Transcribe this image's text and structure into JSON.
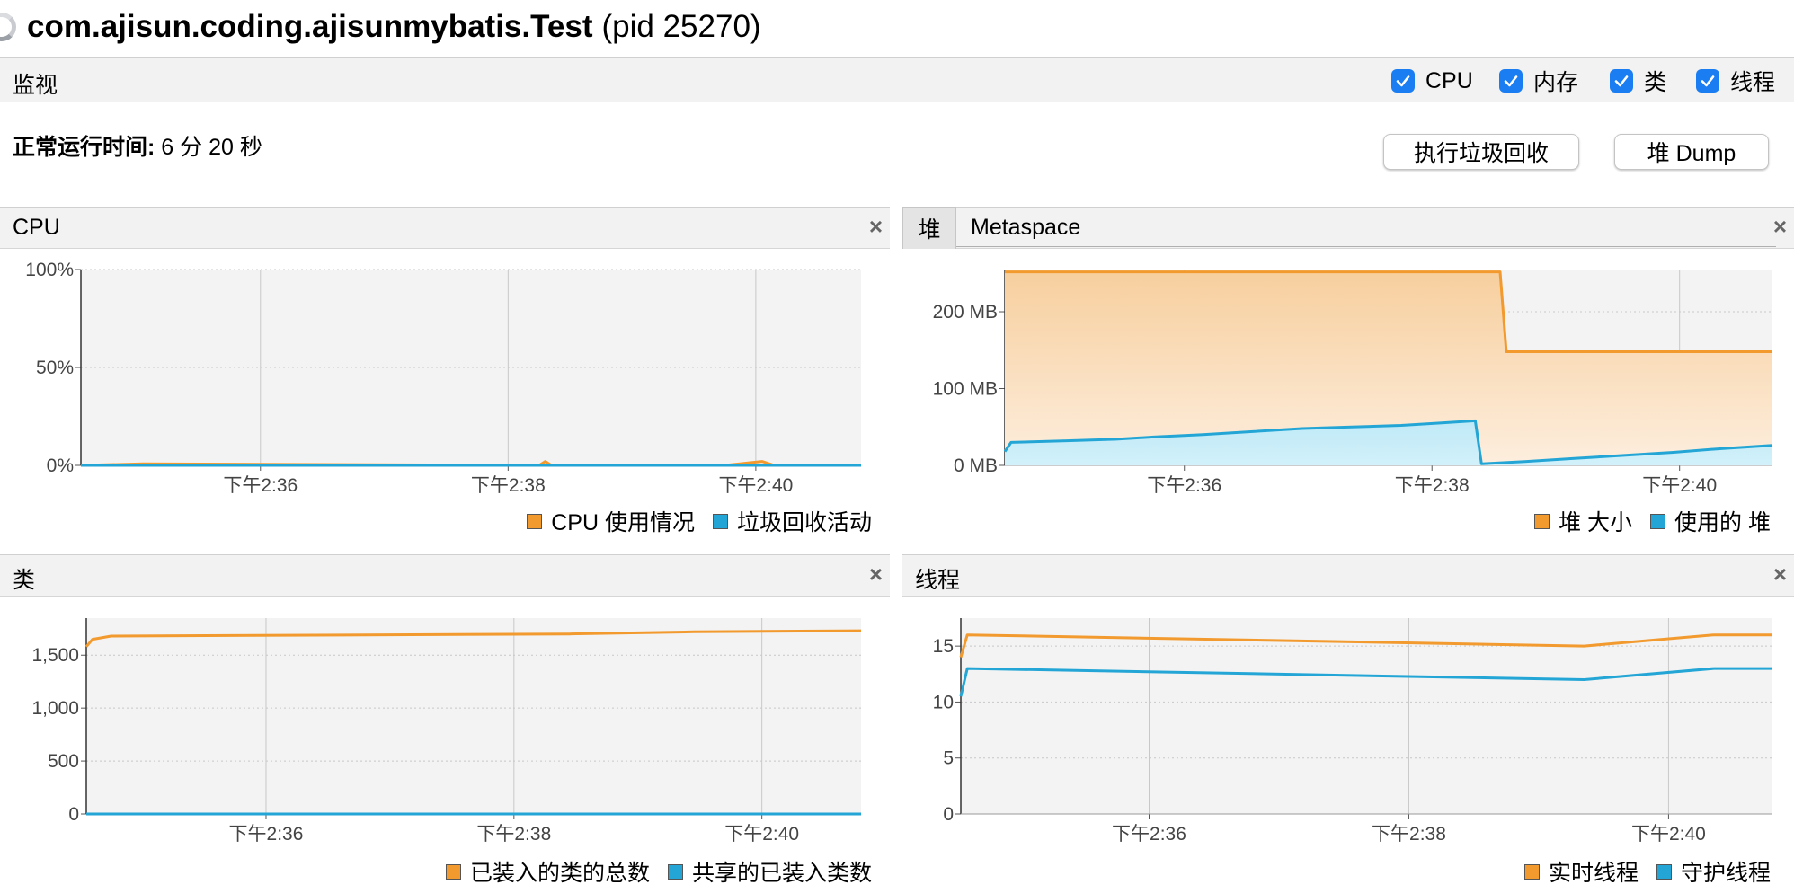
{
  "title": {
    "app": "com.ajisun.coding.ajisunmybatis.Test",
    "pid": "(pid 25270)"
  },
  "monitor": {
    "label": "监视",
    "checkboxes": [
      {
        "label": "CPU",
        "checked": true
      },
      {
        "label": "内存",
        "checked": true
      },
      {
        "label": "类",
        "checked": true
      },
      {
        "label": "线程",
        "checked": true
      }
    ]
  },
  "uptime": {
    "label": "正常运行时间:",
    "value": "6 分 20 秒"
  },
  "buttons": {
    "gc": "执行垃圾回收",
    "heap_dump": "堆 Dump"
  },
  "colors": {
    "orange": "#f29a2e",
    "blue": "#23a6d5",
    "orange_fill": "#f7cf9e",
    "blue_fill": "#d2f1fa"
  },
  "panels": {
    "cpu": {
      "title": "CPU",
      "close": "×",
      "legend": [
        "CPU 使用情况",
        "垃圾回收活动"
      ]
    },
    "memory": {
      "tabs": [
        "堆",
        "Metaspace"
      ],
      "close": "×",
      "legend": [
        "堆 大小",
        "使用的 堆"
      ]
    },
    "classes": {
      "title": "类",
      "close": "×",
      "legend": [
        "已装入的类的总数",
        "共享的已装入类数"
      ]
    },
    "threads": {
      "title": "线程",
      "close": "×",
      "legend": [
        "实时线程",
        "守护线程"
      ]
    }
  },
  "chart_data": [
    {
      "id": "cpu",
      "type": "line",
      "x_ticks": [
        "下午2:36",
        "下午2:38",
        "下午2:40"
      ],
      "y_ticks": [
        "0%",
        "50%",
        "100%"
      ],
      "ylim": [
        0,
        100
      ],
      "grid": true,
      "series": [
        {
          "name": "CPU 使用情况",
          "x": [
            0,
            0.5,
            3.7,
            3.75,
            3.8,
            5.2,
            5.5,
            5.6,
            6.3
          ],
          "values": [
            0,
            0.8,
            0,
            2,
            0,
            0,
            2,
            0,
            0
          ]
        },
        {
          "name": "垃圾回收活动",
          "x": [
            0,
            6.3
          ],
          "values": [
            0,
            0
          ]
        }
      ]
    },
    {
      "id": "heap",
      "type": "area",
      "x_ticks": [
        "下午2:36",
        "下午2:38",
        "下午2:40"
      ],
      "y_ticks": [
        "0 MB",
        "100 MB",
        "200 MB"
      ],
      "ylim": [
        0,
        255
      ],
      "grid": true,
      "series": [
        {
          "name": "堆 大小",
          "x": [
            0,
            4,
            4.05,
            6.2
          ],
          "values": [
            252,
            252,
            148,
            148
          ]
        },
        {
          "name": "使用的 堆",
          "x": [
            0,
            0.05,
            0.5,
            0.9,
            1.2,
            1.6,
            2.0,
            2.4,
            2.8,
            3.2,
            3.5,
            3.8,
            3.85,
            4.2,
            4.6,
            5.0,
            5.4,
            5.8,
            6.2
          ],
          "values": [
            18,
            30,
            32,
            34,
            37,
            40,
            44,
            48,
            50,
            52,
            55,
            58,
            2,
            5,
            9,
            13,
            17,
            22,
            26
          ]
        }
      ]
    },
    {
      "id": "classes",
      "type": "line",
      "x_ticks": [
        "下午2:36",
        "下午2:38",
        "下午2:40"
      ],
      "y_ticks": [
        "0",
        "500",
        "1,000",
        "1,500"
      ],
      "ylim": [
        0,
        1850
      ],
      "grid": true,
      "series": [
        {
          "name": "已装入的类的总数",
          "x": [
            0,
            0.05,
            0.2,
            3.9,
            4.9,
            6.25
          ],
          "values": [
            1580,
            1650,
            1680,
            1700,
            1720,
            1730
          ]
        },
        {
          "name": "共享的已装入类数",
          "x": [
            0,
            6.25
          ],
          "values": [
            0,
            0
          ]
        }
      ]
    },
    {
      "id": "threads",
      "type": "line",
      "x_ticks": [
        "下午2:36",
        "下午2:38",
        "下午2:40"
      ],
      "y_ticks": [
        "0",
        "5",
        "10",
        "15"
      ],
      "ylim": [
        0,
        17.5
      ],
      "grid": true,
      "series": [
        {
          "name": "实时线程",
          "x": [
            0,
            0.05,
            4.8,
            5.8,
            6.25
          ],
          "values": [
            14,
            16,
            15,
            16,
            16
          ]
        },
        {
          "name": "守护线程",
          "x": [
            0,
            0.05,
            4.8,
            5.8,
            6.25
          ],
          "values": [
            10.5,
            13,
            12,
            13,
            13
          ]
        }
      ]
    }
  ]
}
